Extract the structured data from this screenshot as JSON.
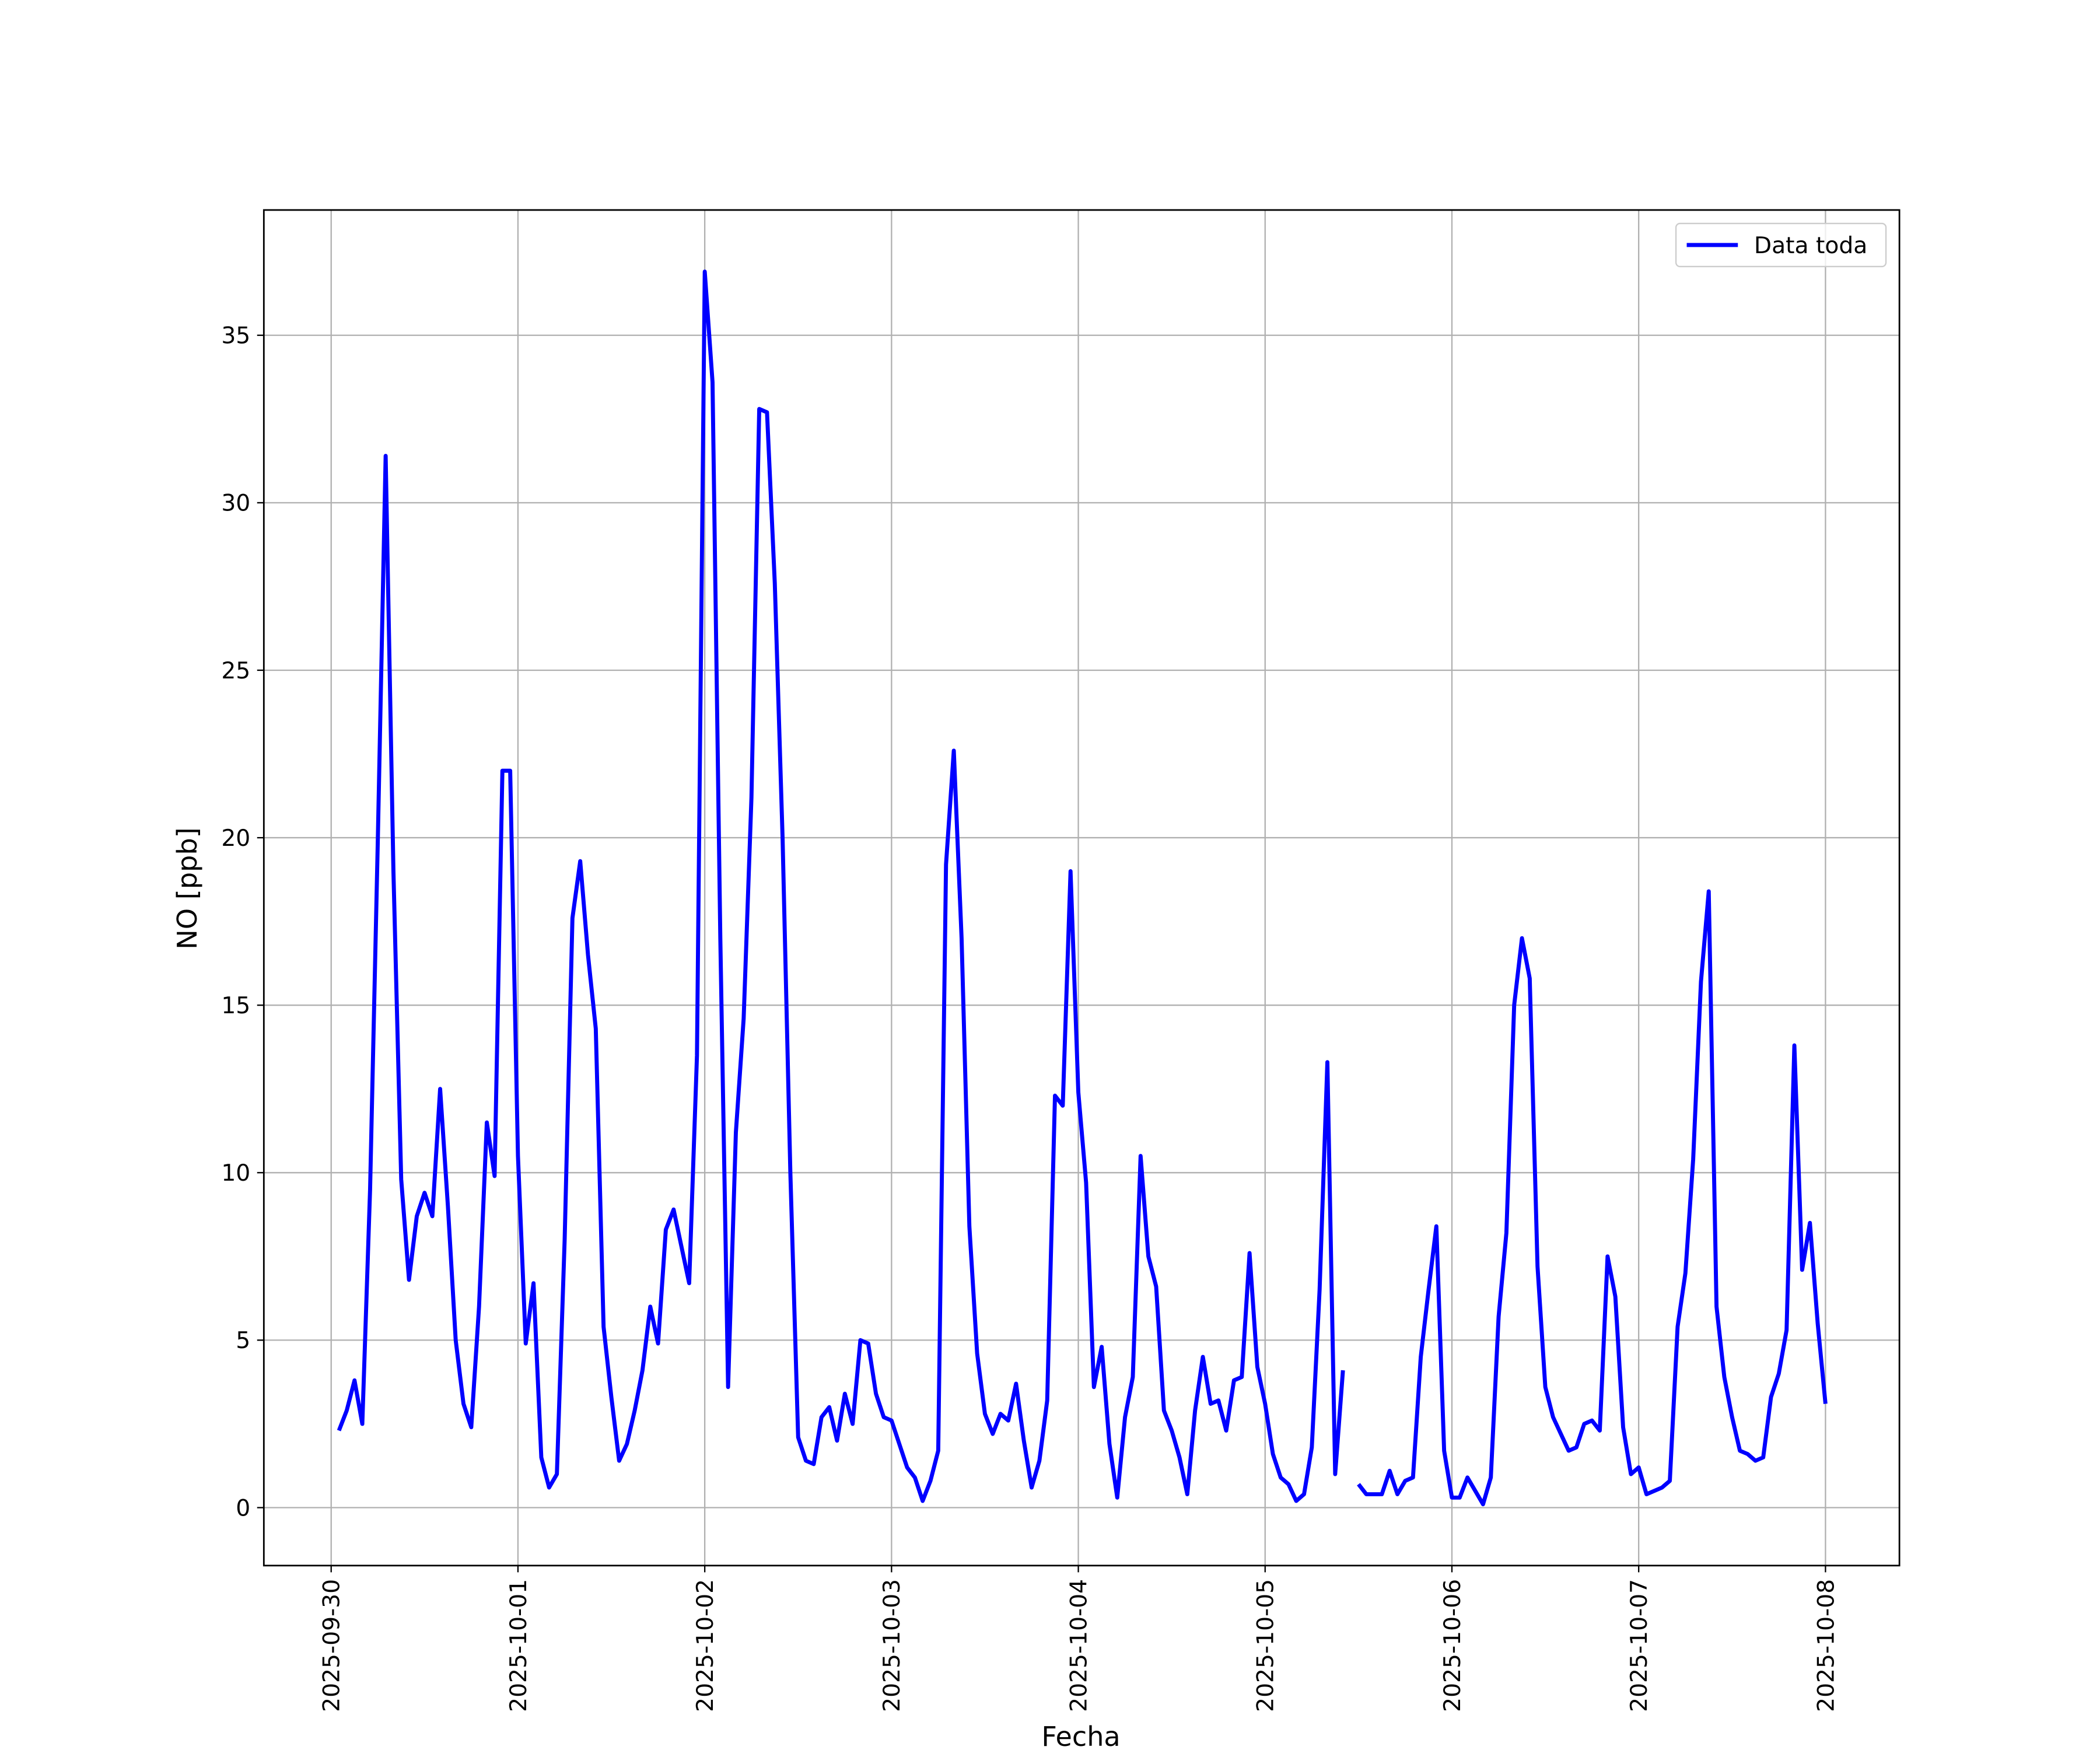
{
  "chart_data": {
    "type": "line",
    "xlabel": "Fecha",
    "ylabel": "NO [ppb]",
    "x": [
      1,
      2,
      3,
      4,
      5,
      6,
      7,
      8,
      9,
      10,
      11,
      12,
      13,
      14,
      15,
      16,
      17,
      18,
      19,
      20,
      21,
      22,
      23,
      24,
      25,
      26,
      27,
      28,
      29,
      30,
      31,
      32,
      33,
      34,
      35,
      36,
      37,
      38,
      39,
      40,
      41,
      42,
      43,
      44,
      45,
      46,
      47,
      48,
      49,
      50,
      51,
      52,
      53,
      54,
      55,
      56,
      57,
      58,
      59,
      60,
      61,
      62,
      63,
      64,
      65,
      66,
      67,
      68,
      69,
      70,
      71,
      72,
      73,
      74,
      75,
      76,
      77,
      78,
      79,
      80,
      81,
      82,
      83,
      84,
      85,
      86,
      87,
      88,
      89,
      90,
      91,
      92,
      93,
      94,
      95,
      96,
      97,
      98,
      99,
      100,
      101,
      102,
      103,
      104,
      105,
      106,
      107,
      108,
      109,
      110,
      111,
      112,
      113,
      114,
      115,
      116,
      117,
      118,
      119,
      120,
      121,
      122,
      123,
      124,
      125,
      126,
      127,
      128,
      129,
      130,
      131,
      132,
      133,
      134,
      135,
      136,
      137,
      138,
      139,
      140,
      141,
      142,
      143,
      144,
      145,
      146,
      147,
      148,
      149,
      150,
      151,
      152,
      153,
      154,
      155,
      156,
      157,
      158,
      159,
      160,
      161,
      162,
      163,
      164,
      165,
      166,
      167,
      168,
      169,
      170,
      171,
      172,
      173,
      174,
      175,
      176,
      177,
      178,
      179,
      180,
      181,
      182,
      183,
      184,
      185,
      186,
      187,
      188,
      189,
      190,
      191,
      192
    ],
    "series": [
      {
        "name": "Data toda",
        "color": "#0000ff",
        "values": [
          2.3,
          2.9,
          3.8,
          2.5,
          9.5,
          20,
          31.4,
          19,
          9.8,
          6.8,
          8.7,
          9.4,
          8.7,
          12.5,
          9,
          5,
          3.1,
          2.4,
          6,
          11.5,
          9.9,
          22,
          22,
          10.5,
          4.9,
          6.7,
          1.5,
          0.6,
          1,
          8,
          17.6,
          19.3,
          16.5,
          14.3,
          5.4,
          3.3,
          1.4,
          1.9,
          2.9,
          4.1,
          6,
          4.9,
          8.3,
          8.9,
          7.8,
          6.7,
          13.5,
          36.9,
          33.6,
          17,
          3.6,
          11.2,
          14.6,
          21.2,
          32.8,
          32.7,
          27.6,
          20,
          10,
          2.1,
          1.4,
          1.3,
          2.7,
          3,
          2,
          3.4,
          2.5,
          5,
          4.9,
          3.4,
          2.7,
          2.6,
          1.9,
          1.2,
          0.9,
          0.2,
          0.8,
          1.7,
          19.2,
          22.6,
          17,
          8.4,
          4.6,
          2.8,
          2.2,
          2.8,
          2.6,
          3.7,
          2,
          0.6,
          1.4,
          3.2,
          12.3,
          12,
          19,
          12.4,
          9.7,
          3.6,
          4.8,
          1.9,
          0.3,
          2.7,
          3.9,
          10.5,
          7.5,
          6.6,
          2.9,
          2.3,
          1.5,
          0.4,
          2.9,
          4.5,
          3.1,
          3.2,
          2.3,
          3.8,
          3.9,
          7.6,
          4.2,
          3.1,
          1.6,
          0.9,
          0.7,
          0.2,
          0.4,
          1.8,
          6.5,
          13.3,
          1,
          4.1,
          null,
          0.7,
          0.4,
          0.4,
          0.4,
          1.1,
          0.4,
          0.8,
          0.9,
          4.5,
          6.5,
          8.4,
          1.7,
          0.3,
          0.3,
          0.9,
          0.5,
          0.1,
          0.9,
          5.7,
          8.2,
          15,
          17,
          15.8,
          7.2,
          3.6,
          2.7,
          2.2,
          1.7,
          1.8,
          2.5,
          2.6,
          2.3,
          7.5,
          6.3,
          2.4,
          1,
          1.2,
          0.4,
          0.5,
          0.6,
          0.8,
          5.4,
          7,
          10.4,
          15.7,
          18.4,
          6,
          3.9,
          2.7,
          1.7,
          1.6,
          1.4,
          1.5,
          3.3,
          4,
          5.3,
          13.8,
          7.1,
          8.5,
          5.5,
          3.1
        ]
      }
    ],
    "xlim": [
      -8.65,
      201.5
    ],
    "xticks": [
      {
        "value": 0,
        "label": "2025-09-30"
      },
      {
        "value": 24,
        "label": "2025-10-01"
      },
      {
        "value": 48,
        "label": "2025-10-02"
      },
      {
        "value": 72,
        "label": "2025-10-03"
      },
      {
        "value": 96,
        "label": "2025-10-04"
      },
      {
        "value": 120,
        "label": "2025-10-05"
      },
      {
        "value": 144,
        "label": "2025-10-06"
      },
      {
        "value": 168,
        "label": "2025-10-07"
      },
      {
        "value": 192,
        "label": "2025-10-08"
      }
    ],
    "ylim": [
      -1.73,
      38.74
    ],
    "yticks": [
      0,
      5,
      10,
      15,
      20,
      25,
      30,
      35
    ],
    "grid": true,
    "legend": "upper right"
  }
}
